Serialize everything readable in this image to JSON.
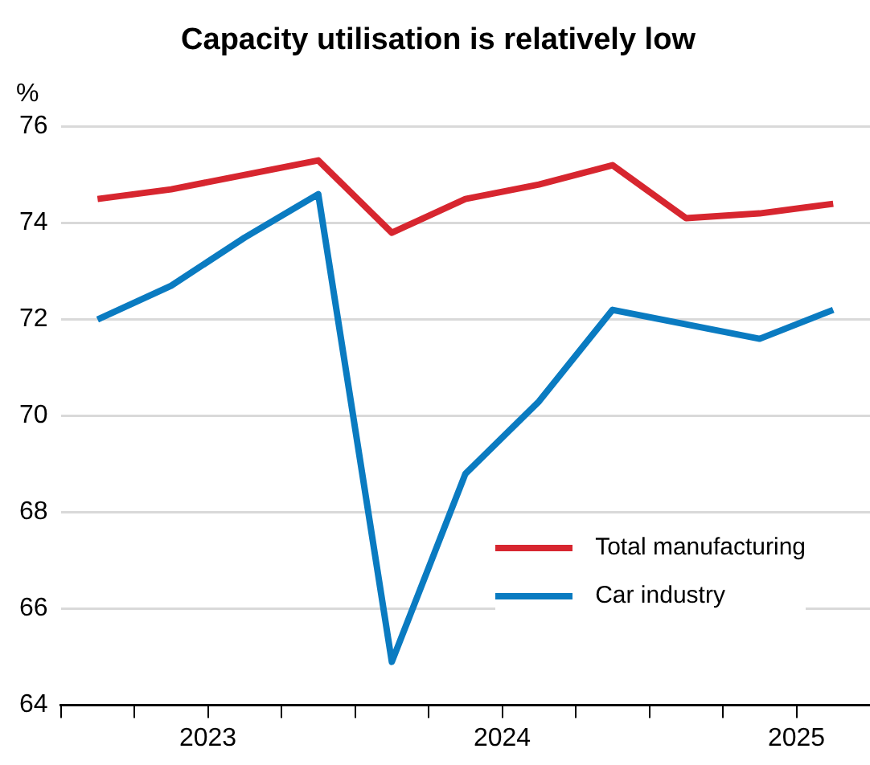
{
  "chart_data": {
    "type": "line",
    "title": "Capacity utilisation is relatively low",
    "ylabel": "%",
    "x": [
      2023.125,
      2023.375,
      2023.625,
      2023.875,
      2024.125,
      2024.375,
      2024.625,
      2024.875,
      2025.125,
      2025.375,
      2025.625
    ],
    "series": [
      {
        "name": "Total manufacturing",
        "color": "#d7262f",
        "values": [
          74.5,
          74.7,
          75.0,
          75.3,
          73.8,
          74.5,
          74.8,
          75.2,
          74.1,
          74.2,
          74.4
        ]
      },
      {
        "name": "Car industry",
        "color": "#0a7bc1",
        "values": [
          72.0,
          72.7,
          73.7,
          74.6,
          64.9,
          68.8,
          70.3,
          72.2,
          71.9,
          71.6,
          72.2
        ]
      }
    ],
    "xlim": [
      2023,
      2025.75
    ],
    "xticks": [
      {
        "value": 2023,
        "label": null
      },
      {
        "value": 2023.25,
        "label": null
      },
      {
        "value": 2023.5,
        "label": "2023"
      },
      {
        "value": 2023.75,
        "label": null
      },
      {
        "value": 2024,
        "label": null
      },
      {
        "value": 2024.25,
        "label": null
      },
      {
        "value": 2024.5,
        "label": "2024"
      },
      {
        "value": 2024.75,
        "label": null
      },
      {
        "value": 2025,
        "label": null
      },
      {
        "value": 2025.25,
        "label": null
      },
      {
        "value": 2025.5,
        "label": "2025"
      }
    ],
    "ylim": [
      64,
      76
    ],
    "yticks": [
      64,
      66,
      68,
      70,
      72,
      74,
      76
    ],
    "grid": "y",
    "legend": "bottom right",
    "marker": "none",
    "line_style": "solid"
  }
}
